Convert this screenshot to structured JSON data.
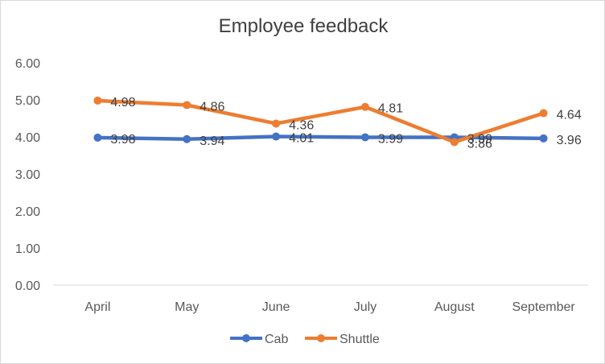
{
  "chart_data": {
    "type": "line",
    "title": "Employee feedback",
    "xlabel": "",
    "ylabel": "",
    "categories": [
      "April",
      "May",
      "June",
      "July",
      "August",
      "September"
    ],
    "y_ticks": [
      "0.00",
      "1.00",
      "2.00",
      "3.00",
      "4.00",
      "5.00",
      "6.00"
    ],
    "ylim": [
      0,
      6
    ],
    "grid": false,
    "legend_position": "bottom",
    "series": [
      {
        "name": "Cab",
        "color": "#4472C4",
        "values": [
          3.98,
          3.94,
          4.01,
          3.99,
          3.99,
          3.96
        ],
        "labels": [
          "3.98",
          "3.94",
          "4.01",
          "3.99",
          "3.99",
          "3.96"
        ]
      },
      {
        "name": "Shuttle",
        "color": "#ED7D31",
        "values": [
          4.98,
          4.86,
          4.36,
          4.81,
          3.86,
          4.64
        ],
        "labels": [
          "4.98",
          "4.86",
          "4.36",
          "4.81",
          "3.86",
          "4.64"
        ]
      }
    ]
  }
}
